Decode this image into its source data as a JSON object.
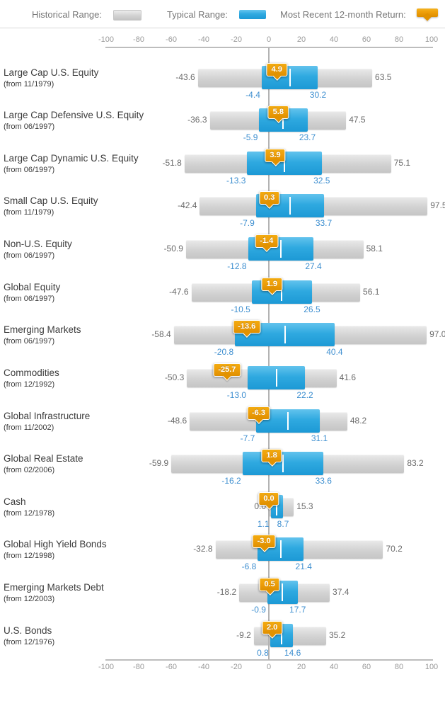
{
  "legend": {
    "historical_label": "Historical Range:",
    "typical_label": "Typical Range:",
    "recent_label": "Most Recent 12-month Return:"
  },
  "colors": {
    "historical_gray": "#d2d2d2",
    "typical_blue": "#2fa9e0",
    "recent_orange": "#efa00b",
    "typical_label_blue": "#3e8fd0",
    "hist_label_gray": "#6b6b6b",
    "axis_label_gray": "#999999"
  },
  "chart_data": {
    "type": "bar",
    "subtype": "horizontal-range-bars",
    "axis": {
      "min": -100,
      "max": 100,
      "ticks": [
        -100,
        -80,
        -60,
        -40,
        -20,
        0,
        20,
        40,
        60,
        80,
        100
      ],
      "top_axis": true,
      "bottom_axis": true,
      "zero_line": true
    },
    "series_legend": [
      "Historical Range",
      "Typical Range",
      "Most Recent 12-month Return"
    ],
    "rows": [
      {
        "label": "Large Cap U.S. Equity",
        "sublabel": "(from 11/1979)",
        "hist_min": "-43.6",
        "hist_max": "63.5",
        "typ_min": "-4.4",
        "typ_max": "30.2",
        "recent": "4.9"
      },
      {
        "label": "Large Cap Defensive U.S. Equity",
        "sublabel": "(from 06/1997)",
        "hist_min": "-36.3",
        "hist_max": "47.5",
        "typ_min": "-5.9",
        "typ_max": "23.7",
        "recent": "5.8"
      },
      {
        "label": "Large Cap Dynamic U.S. Equity",
        "sublabel": "(from 06/1997)",
        "hist_min": "-51.8",
        "hist_max": "75.1",
        "typ_min": "-13.3",
        "typ_max": "32.5",
        "recent": "3.9"
      },
      {
        "label": "Small Cap U.S. Equity",
        "sublabel": "(from 11/1979)",
        "hist_min": "-42.4",
        "hist_max": "97.5",
        "typ_min": "-7.9",
        "typ_max": "33.7",
        "recent": "0.3"
      },
      {
        "label": "Non-U.S. Equity",
        "sublabel": "(from 06/1997)",
        "hist_min": "-50.9",
        "hist_max": "58.1",
        "typ_min": "-12.8",
        "typ_max": "27.4",
        "recent": "-1.4"
      },
      {
        "label": "Global Equity",
        "sublabel": "(from 06/1997)",
        "hist_min": "-47.6",
        "hist_max": "56.1",
        "typ_min": "-10.5",
        "typ_max": "26.5",
        "recent": "1.9"
      },
      {
        "label": "Emerging Markets",
        "sublabel": "(from 06/1997)",
        "hist_min": "-58.4",
        "hist_max": "97.0",
        "typ_min": "-20.8",
        "typ_max": "40.4",
        "recent": "-13.6"
      },
      {
        "label": "Commodities",
        "sublabel": "(from 12/1992)",
        "hist_min": "-50.3",
        "hist_max": "41.6",
        "typ_min": "-13.0",
        "typ_max": "22.2",
        "recent": "-25.7"
      },
      {
        "label": "Global Infrastructure",
        "sublabel": "(from 11/2002)",
        "hist_min": "-48.6",
        "hist_max": "48.2",
        "typ_min": "-7.7",
        "typ_max": "31.1",
        "recent": "-6.3"
      },
      {
        "label": "Global Real Estate",
        "sublabel": "(from 02/2006)",
        "hist_min": "-59.9",
        "hist_max": "83.2",
        "typ_min": "-16.2",
        "typ_max": "33.6",
        "recent": "1.8"
      },
      {
        "label": "Cash",
        "sublabel": "(from 12/1978)",
        "hist_min": "0.0",
        "hist_max": "15.3",
        "typ_min": "1.1",
        "typ_max": "8.7",
        "recent": "0.0"
      },
      {
        "label": "Global High Yield Bonds",
        "sublabel": "(from 12/1998)",
        "hist_min": "-32.8",
        "hist_max": "70.2",
        "typ_min": "-6.8",
        "typ_max": "21.4",
        "recent": "-3.0"
      },
      {
        "label": "Emerging Markets Debt",
        "sublabel": "(from 12/2003)",
        "hist_min": "-18.2",
        "hist_max": "37.4",
        "typ_min": "-0.9",
        "typ_max": "17.7",
        "recent": "0.5"
      },
      {
        "label": "U.S. Bonds",
        "sublabel": "(from 12/1976)",
        "hist_min": "-9.2",
        "hist_max": "35.2",
        "typ_min": "0.8",
        "typ_max": "14.6",
        "recent": "2.0"
      }
    ]
  }
}
